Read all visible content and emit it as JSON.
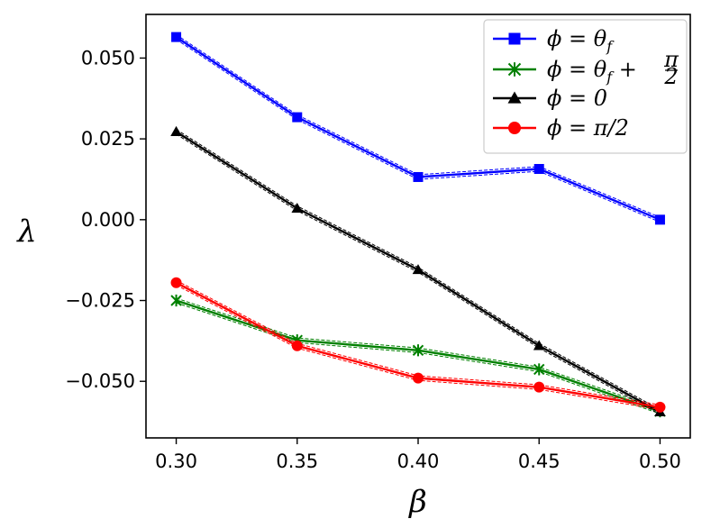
{
  "chart_data": {
    "type": "line",
    "title": "",
    "xlabel": "β",
    "ylabel": "λ",
    "xlim": [
      0.2875,
      0.5125
    ],
    "ylim": [
      -0.0675,
      0.0635
    ],
    "xticks": [
      0.3,
      0.35,
      0.4,
      0.45,
      0.5
    ],
    "xtick_labels": [
      "0.30",
      "0.35",
      "0.40",
      "0.45",
      "0.50"
    ],
    "yticks": [
      0.05,
      0.025,
      0.0,
      -0.025,
      -0.05
    ],
    "ytick_labels": [
      "0.050",
      "0.025",
      "0.000",
      "−0.025",
      "−0.050"
    ],
    "grid": false,
    "legend_position": "top-right",
    "x": [
      0.3,
      0.35,
      0.4,
      0.45,
      0.5
    ],
    "series": [
      {
        "name": "ϕ = θ_f",
        "legend_label": "ϕ = θf",
        "legend_sub": "f",
        "legend_main": "ϕ = θ",
        "color": "#0000ff",
        "marker": "square",
        "values": [
          0.0565,
          0.0317,
          0.0132,
          0.0157,
          0.0
        ]
      },
      {
        "name": "ϕ = θ_f + π/2",
        "legend_main": "ϕ = θ",
        "legend_sub": "f",
        "legend_tail": " + ",
        "legend_frac_num": "π",
        "legend_frac_den": "2",
        "color": "#008000",
        "marker": "x",
        "values": [
          -0.025,
          -0.0373,
          -0.0404,
          -0.0463,
          -0.0593
        ]
      },
      {
        "name": "ϕ = 0",
        "legend_main": "ϕ = 0",
        "color": "#000000",
        "marker": "triangle",
        "values": [
          0.0272,
          0.0035,
          -0.0155,
          -0.039,
          -0.0595
        ]
      },
      {
        "name": "ϕ = π/2",
        "legend_main": "ϕ = π/2",
        "color": "#ff0000",
        "marker": "circle",
        "values": [
          -0.0195,
          -0.039,
          -0.049,
          -0.0518,
          -0.058
        ]
      }
    ]
  }
}
